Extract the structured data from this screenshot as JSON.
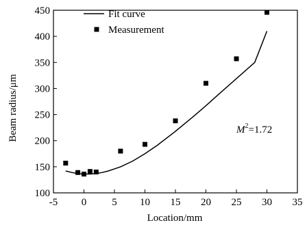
{
  "chart_data": {
    "type": "scatter",
    "xlabel": "Location/mm",
    "ylabel": "Beam radius/μm",
    "xlim": [
      -5,
      35
    ],
    "ylim": [
      100,
      450
    ],
    "xticks": [
      -5,
      0,
      5,
      10,
      15,
      20,
      25,
      30,
      35
    ],
    "yticks": [
      100,
      150,
      200,
      250,
      300,
      350,
      400,
      450
    ],
    "grid": false,
    "legend": {
      "placement": "top-left",
      "entries": [
        "Fit curve",
        "Measurement"
      ]
    },
    "series": [
      {
        "name": "Measurement",
        "type": "scatter",
        "x": [
          -3,
          -1,
          0,
          1,
          2,
          6,
          10,
          15,
          20,
          25,
          30
        ],
        "y": [
          157,
          139,
          136,
          141,
          140,
          180,
          193,
          238,
          310,
          357,
          446
        ]
      },
      {
        "name": "Fit curve",
        "type": "line",
        "model": {
          "w0": 136,
          "z0": 0.3,
          "zR": 8.65
        },
        "x": [
          -3,
          -2,
          -1,
          0,
          1,
          2,
          3,
          4,
          5,
          6,
          8,
          10,
          12,
          15,
          18,
          20,
          22,
          25,
          28,
          30
        ],
        "y": [
          142,
          139,
          137,
          136,
          136,
          137,
          139,
          142,
          146,
          150,
          161,
          175,
          191,
          218,
          247,
          267,
          288,
          319,
          350,
          410
        ]
      }
    ],
    "annotation": {
      "prefix": "M",
      "sup": "2",
      "suffix": "=1.72"
    }
  }
}
